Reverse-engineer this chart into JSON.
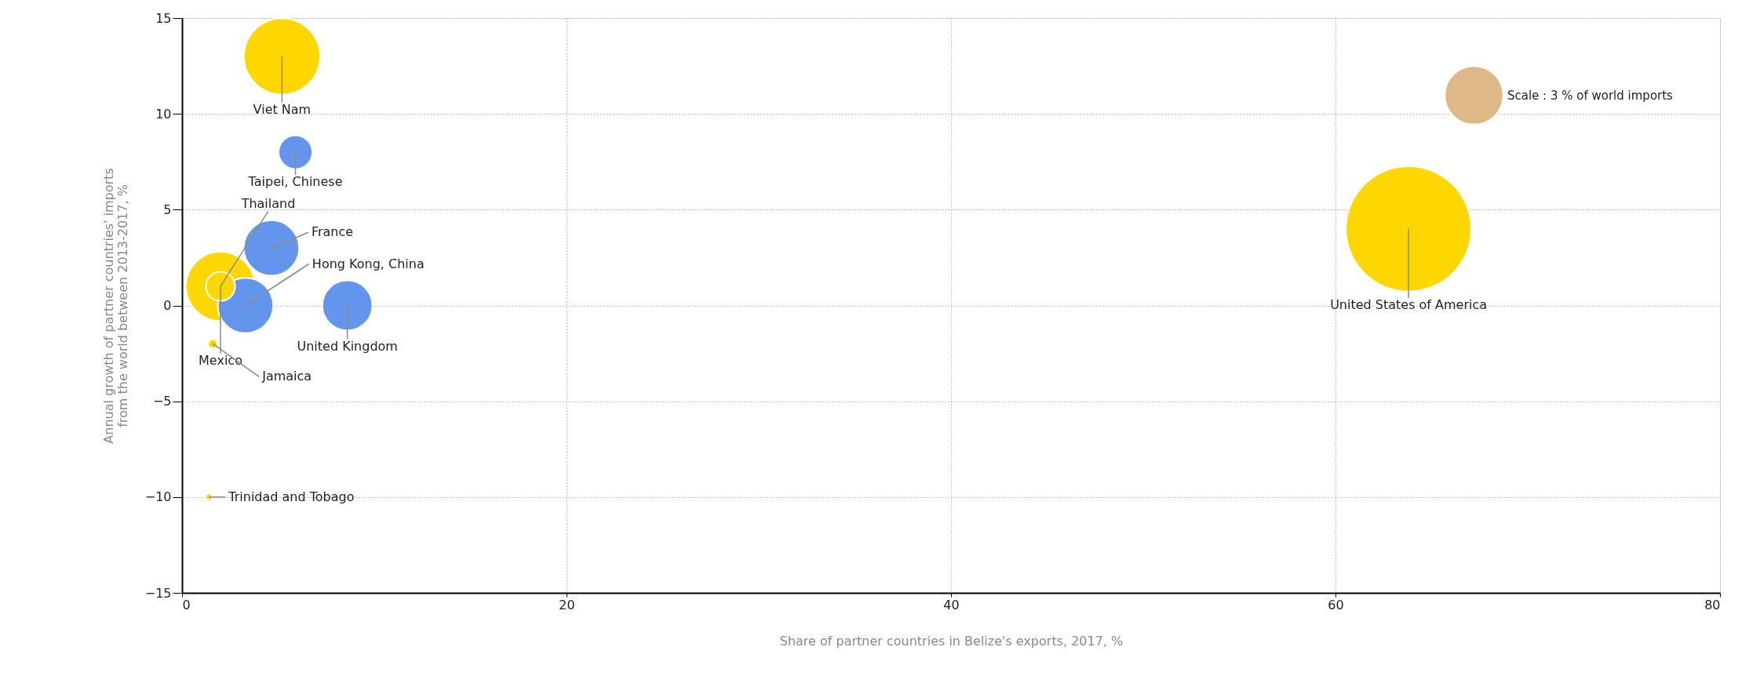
{
  "chart_data": {
    "type": "bubble",
    "xlabel": "Share of partner countries in Belize's exports, 2017, %",
    "ylabel": "Annual growth of partner countries' imports\nfrom the world between 2013-2017, %",
    "size_legend": [
      {
        "value": 3,
        "label": "Scale : 3 % of world imports"
      }
    ],
    "series": [
      {
        "name": "Viet Nam",
        "color": "#ffd700",
        "x": [
          5.2
        ],
        "values": [
          13
        ],
        "sizes": [
          5.1
        ]
      },
      {
        "name": "Taipei, Chinese",
        "color": "#6495ed",
        "x": [
          5.9
        ],
        "values": [
          8
        ],
        "sizes": [
          1.0
        ]
      },
      {
        "name": "Thailand",
        "color": "#ffd700",
        "x": [
          2.0
        ],
        "values": [
          1
        ],
        "sizes": [
          0.75
        ]
      },
      {
        "name": "Mexico",
        "color": "#ffd700",
        "x": [
          2.0
        ],
        "values": [
          1
        ],
        "sizes": [
          4.2
        ]
      },
      {
        "name": "France",
        "color": "#6495ed",
        "x": [
          4.65
        ],
        "values": [
          3
        ],
        "sizes": [
          2.7
        ]
      },
      {
        "name": "Hong Kong, China",
        "color": "#6495ed",
        "x": [
          3.3
        ],
        "values": [
          0
        ],
        "sizes": [
          2.7
        ]
      },
      {
        "name": "United Kingdom",
        "color": "#6495ed",
        "x": [
          8.6
        ],
        "values": [
          0
        ],
        "sizes": [
          2.2
        ]
      },
      {
        "name": "Jamaica",
        "color": "#ffd700",
        "x": [
          1.6
        ],
        "values": [
          -2
        ],
        "sizes": [
          0.08
        ]
      },
      {
        "name": "Trinidad and Tobago",
        "color": "#ffd700",
        "x": [
          1.4
        ],
        "values": [
          -10
        ],
        "sizes": [
          0.04
        ]
      },
      {
        "name": "United States of America",
        "color": "#ffd700",
        "x": [
          63.8
        ],
        "values": [
          4
        ],
        "sizes": [
          13.8
        ]
      }
    ],
    "xlim": [
      0,
      80
    ],
    "xticks": [
      0,
      20,
      40,
      60,
      80
    ],
    "ylim": [
      -15,
      15
    ],
    "yticks": [
      -15,
      -10,
      -5,
      0,
      5,
      10,
      15
    ],
    "grid": true
  }
}
